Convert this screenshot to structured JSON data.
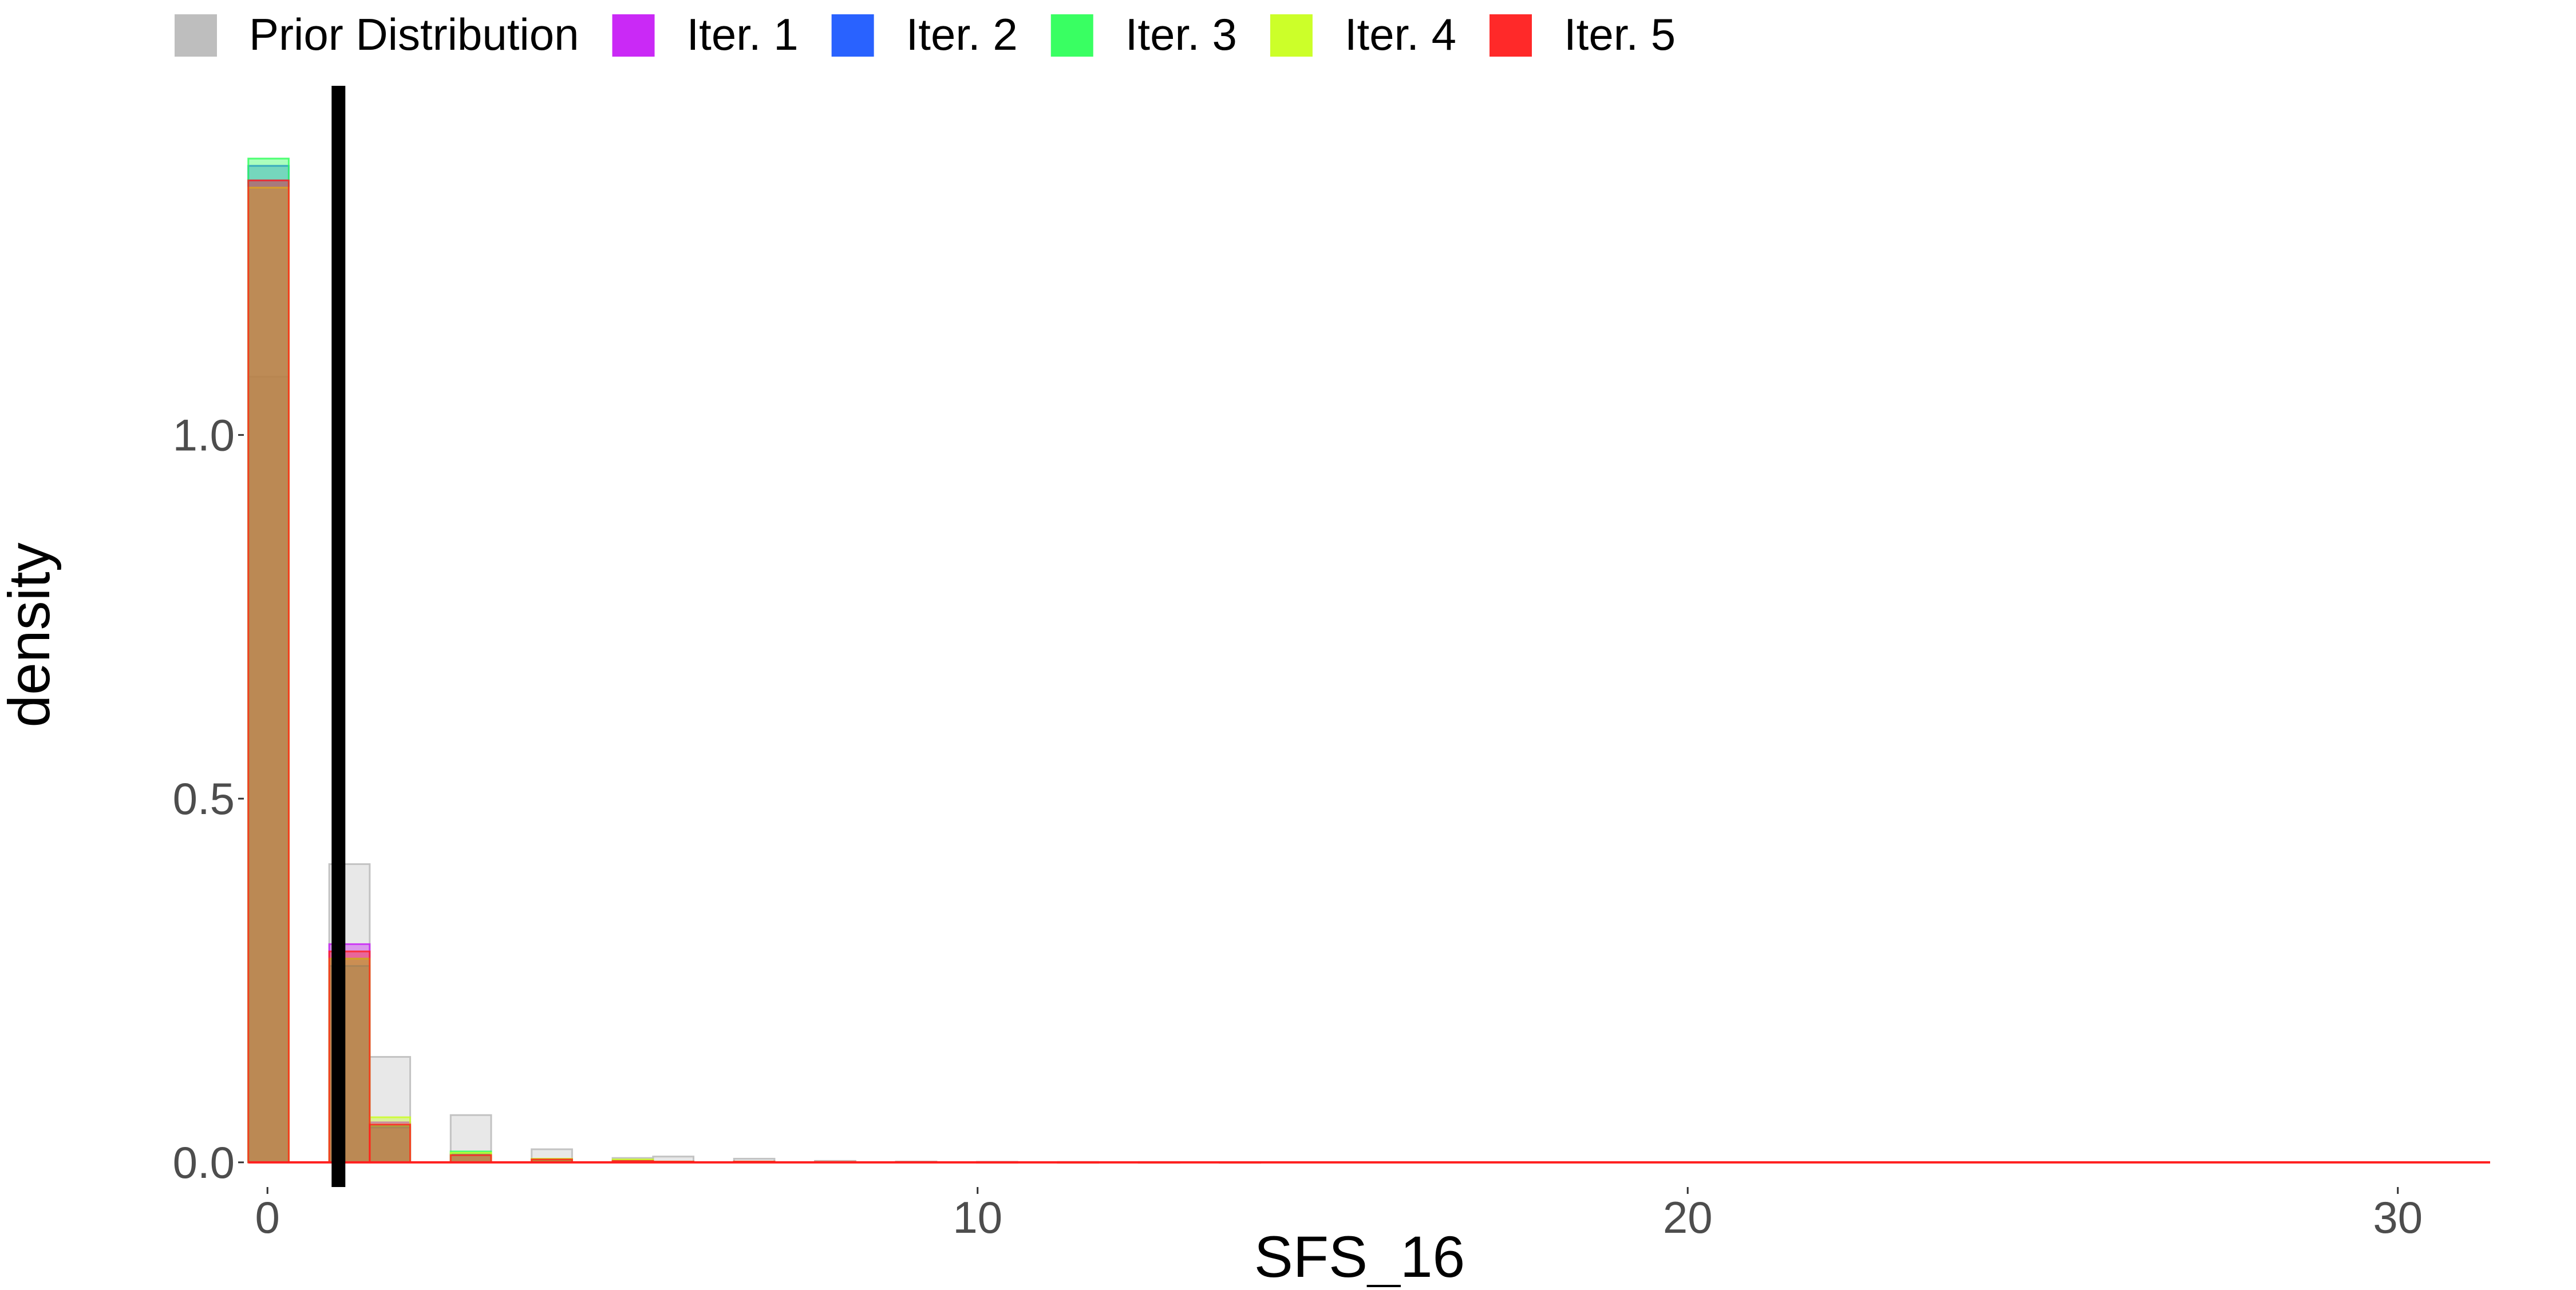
{
  "chart_data": {
    "type": "histogram",
    "title": "",
    "xlabel": "SFS_16",
    "ylabel": "density",
    "xlim": [
      -0.3,
      31.3
    ],
    "ylim": [
      -0.03,
      1.48
    ],
    "x_ticks": [
      0,
      10,
      20,
      30
    ],
    "x_tick_labels": [
      "0",
      "10",
      "20",
      "30"
    ],
    "y_ticks": [
      0.0,
      0.5,
      1.0
    ],
    "y_tick_labels": [
      "0.0",
      "0.5",
      "1.0"
    ],
    "grid": false,
    "legend_position": "top",
    "bin_width": 0.57,
    "bin_starts": [
      -0.27,
      0.87,
      1.44,
      2.58,
      3.72,
      4.86,
      5.43,
      6.57,
      7.71,
      8.85,
      9.99,
      11.13,
      12.27,
      13.41
    ],
    "series": [
      {
        "name": "Prior Distribution",
        "color": "#bebebe",
        "values": [
          1.08,
          0.41,
          0.145,
          0.065,
          0.018,
          0.006,
          0.008,
          0.005,
          0.002,
          0.001,
          0.0008,
          0.0005,
          0.0004,
          0.0003
        ]
      },
      {
        "name": "Iter. 1",
        "color": "#c71ef5",
        "values": [
          1.35,
          0.3,
          0.055,
          0.01,
          0.004,
          0.002,
          0.001,
          0.001,
          0.0006,
          0.0004,
          0.0002,
          0.0001,
          0.0001,
          0.0001
        ]
      },
      {
        "name": "Iter. 2",
        "color": "#1e5aff",
        "values": [
          1.37,
          0.27,
          0.048,
          0.012,
          0.004,
          0.002,
          0.001,
          0.001,
          0.0006,
          0.0004,
          0.0002,
          0.0001,
          0.0001,
          0.0001
        ]
      },
      {
        "name": "Iter. 3",
        "color": "#2eff5a",
        "values": [
          1.38,
          0.28,
          0.05,
          0.015,
          0.003,
          0.002,
          0.001,
          0.001,
          0.0006,
          0.0004,
          0.0002,
          0.0001,
          0.0001,
          0.0001
        ]
      },
      {
        "name": "Iter. 4",
        "color": "#c9ff1e",
        "values": [
          1.34,
          0.28,
          0.062,
          0.013,
          0.005,
          0.004,
          0.001,
          0.001,
          0.0006,
          0.0004,
          0.0002,
          0.0001,
          0.0001,
          0.0001
        ]
      },
      {
        "name": "Iter. 5",
        "color": "#ff1e1e",
        "values": [
          1.35,
          0.29,
          0.052,
          0.01,
          0.004,
          0.002,
          0.001,
          0.001,
          0.0006,
          0.0004,
          0.0002,
          0.0001,
          0.0001,
          0.0001
        ]
      }
    ],
    "observed_value": 1.0,
    "observed_line_color": "#000000",
    "baseline_color": "#ff1e1e"
  }
}
